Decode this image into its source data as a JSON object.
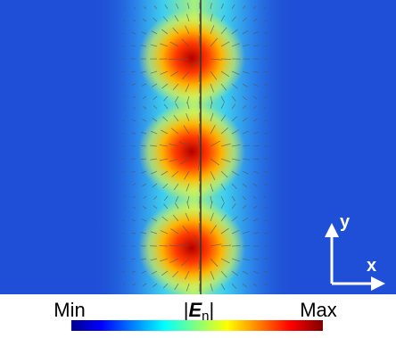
{
  "axes": {
    "y": "y",
    "x": "x"
  },
  "colorbar": {
    "min": "Min",
    "max": "Max",
    "quantity": {
      "open": "|",
      "symbol": "E",
      "subscript": "n",
      "close": "|"
    }
  }
}
